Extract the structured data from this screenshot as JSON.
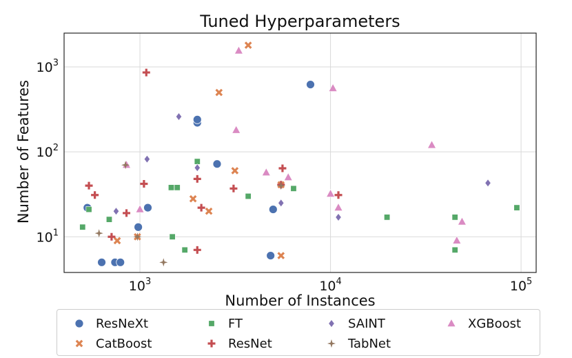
{
  "chart_data": {
    "type": "scatter",
    "title": "Tuned Hyperparameters",
    "xlabel": "Number of Instances",
    "ylabel": "Number of Features",
    "xscale": "log",
    "yscale": "log",
    "xlim": [
      400,
      120000
    ],
    "ylim": [
      3.8,
      2500
    ],
    "xticks": [
      {
        "value": 1000,
        "base": "10",
        "exp": "3"
      },
      {
        "value": 10000,
        "base": "10",
        "exp": "4"
      },
      {
        "value": 100000,
        "base": "10",
        "exp": "5"
      }
    ],
    "yticks": [
      {
        "value": 10,
        "base": "10",
        "exp": "1"
      },
      {
        "value": 100,
        "base": "10",
        "exp": "2"
      },
      {
        "value": 1000,
        "base": "10",
        "exp": "3"
      }
    ],
    "grid": true,
    "legend_position": "bottom",
    "series": [
      {
        "name": "ResNeXt",
        "marker": "circle",
        "color": "#4c72b0",
        "points": [
          [
            530,
            22
          ],
          [
            630,
            5
          ],
          [
            740,
            5
          ],
          [
            790,
            5
          ],
          [
            980,
            13
          ],
          [
            1100,
            22
          ],
          [
            2000,
            220
          ],
          [
            2000,
            240
          ],
          [
            2540,
            72
          ],
          [
            4850,
            6
          ],
          [
            5000,
            21
          ],
          [
            7850,
            620
          ]
        ]
      },
      {
        "name": "FT",
        "marker": "square",
        "color": "#55a868",
        "points": [
          [
            500,
            13
          ],
          [
            540,
            21
          ],
          [
            690,
            16
          ],
          [
            1460,
            38
          ],
          [
            1570,
            38
          ],
          [
            1480,
            10
          ],
          [
            1720,
            7
          ],
          [
            2000,
            77
          ],
          [
            3700,
            30
          ],
          [
            6400,
            37
          ],
          [
            19800,
            17
          ],
          [
            45000,
            17
          ],
          [
            45000,
            7
          ],
          [
            95000,
            22
          ]
        ]
      },
      {
        "name": "SAINT",
        "marker": "diamond",
        "color": "#8172b2",
        "points": [
          [
            750,
            20
          ],
          [
            1090,
            82
          ],
          [
            1600,
            260
          ],
          [
            2000,
            65
          ],
          [
            5500,
            25
          ],
          [
            11000,
            17
          ],
          [
            67000,
            43
          ]
        ]
      },
      {
        "name": "XGBoost",
        "marker": "triangle",
        "color": "#da8bc3",
        "points": [
          [
            850,
            70
          ],
          [
            1000,
            21
          ],
          [
            3200,
            180
          ],
          [
            3300,
            1550
          ],
          [
            4600,
            57
          ],
          [
            6000,
            50
          ],
          [
            10000,
            32
          ],
          [
            10300,
            560
          ],
          [
            11000,
            22
          ],
          [
            34000,
            120
          ],
          [
            46000,
            9
          ],
          [
            49000,
            15
          ]
        ]
      },
      {
        "name": "CatBoost",
        "marker": "x",
        "color": "#dd8452",
        "points": [
          [
            760,
            9
          ],
          [
            970,
            10
          ],
          [
            1900,
            28
          ],
          [
            2300,
            20
          ],
          [
            2600,
            500
          ],
          [
            3150,
            60
          ],
          [
            3700,
            1800
          ],
          [
            5500,
            6
          ],
          [
            5500,
            41
          ]
        ]
      },
      {
        "name": "ResNet",
        "marker": "plus",
        "color": "#c44e52",
        "points": [
          [
            540,
            40
          ],
          [
            580,
            31
          ],
          [
            710,
            10
          ],
          [
            850,
            19
          ],
          [
            1050,
            42
          ],
          [
            1080,
            860
          ],
          [
            2000,
            7
          ],
          [
            2000,
            48
          ],
          [
            2100,
            22
          ],
          [
            3100,
            37
          ],
          [
            5500,
            41
          ],
          [
            5600,
            64
          ],
          [
            11000,
            31
          ]
        ]
      },
      {
        "name": "TabNet",
        "marker": "star",
        "color": "#937860",
        "points": [
          [
            610,
            11
          ],
          [
            840,
            70
          ],
          [
            970,
            10
          ],
          [
            1330,
            5
          ],
          [
            5500,
            40
          ]
        ]
      }
    ]
  },
  "legend": {
    "items": [
      {
        "name": "ResNeXt",
        "marker": "circle",
        "color": "#4c72b0"
      },
      {
        "name": "CatBoost",
        "marker": "x",
        "color": "#dd8452"
      },
      {
        "name": "FT",
        "marker": "square",
        "color": "#55a868"
      },
      {
        "name": "ResNet",
        "marker": "plus",
        "color": "#c44e52"
      },
      {
        "name": "SAINT",
        "marker": "diamond",
        "color": "#8172b2"
      },
      {
        "name": "TabNet",
        "marker": "star",
        "color": "#937860"
      },
      {
        "name": "XGBoost",
        "marker": "triangle",
        "color": "#da8bc3"
      }
    ]
  }
}
